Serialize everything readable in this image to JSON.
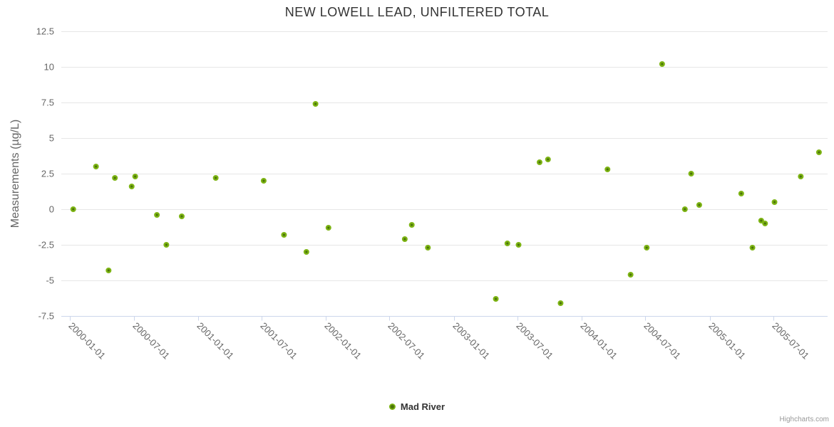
{
  "title": "NEW LOWELL LEAD, UNFILTERED TOTAL",
  "y_axis_title": "Measurements (µg/L)",
  "legend": {
    "label": "Mad River"
  },
  "credits": "Highcharts.com",
  "colors": {
    "title": "#333333",
    "labels": "#666666",
    "tick_labels": "#666666",
    "credits": "#999999",
    "grid": "#e6e6e6",
    "axis_line": "#ccd6eb",
    "marker_center": "#4a7309",
    "marker_rim": "#7db414"
  },
  "chart_data": {
    "type": "scatter",
    "title": "NEW LOWELL LEAD, UNFILTERED TOTAL",
    "xlabel": "",
    "ylabel": "Measurements (µg/L)",
    "ylim": [
      -7.5,
      12.5
    ],
    "y_tick_interval": 2.5,
    "grid": "horizontal-only",
    "legend_position": "bottom-center",
    "y_ticks": [
      {
        "v": 12.5,
        "label": "12.5"
      },
      {
        "v": 10,
        "label": "10"
      },
      {
        "v": 7.5,
        "label": "7.5"
      },
      {
        "v": 5,
        "label": "5"
      },
      {
        "v": 2.5,
        "label": "2.5"
      },
      {
        "v": 0,
        "label": "0"
      },
      {
        "v": -2.5,
        "label": "-2.5"
      },
      {
        "v": -5,
        "label": "-5"
      },
      {
        "v": -7.5,
        "label": "-7.5"
      }
    ],
    "x_ticks": [
      "2000-01-01",
      "2000-07-01",
      "2001-01-01",
      "2001-07-01",
      "2002-01-01",
      "2002-07-01",
      "2003-01-01",
      "2003-07-01",
      "2004-01-01",
      "2004-07-01",
      "2005-01-01",
      "2005-07-01"
    ],
    "series": [
      {
        "name": "Mad River",
        "points": [
          {
            "date": "2000-01-10",
            "value": 0.0
          },
          {
            "date": "2000-03-15",
            "value": 3.0
          },
          {
            "date": "2000-04-20",
            "value": -4.3
          },
          {
            "date": "2000-05-08",
            "value": 2.2
          },
          {
            "date": "2000-06-25",
            "value": 1.6
          },
          {
            "date": "2000-07-05",
            "value": 2.3
          },
          {
            "date": "2000-09-05",
            "value": -0.4
          },
          {
            "date": "2000-10-02",
            "value": -2.5
          },
          {
            "date": "2000-11-15",
            "value": -0.5
          },
          {
            "date": "2001-02-20",
            "value": 2.2
          },
          {
            "date": "2001-07-07",
            "value": 2.0
          },
          {
            "date": "2001-09-03",
            "value": -1.8
          },
          {
            "date": "2001-11-06",
            "value": -3.0
          },
          {
            "date": "2001-12-02",
            "value": 7.4
          },
          {
            "date": "2002-01-08",
            "value": -1.3
          },
          {
            "date": "2002-08-14",
            "value": -2.1
          },
          {
            "date": "2002-09-03",
            "value": -1.1
          },
          {
            "date": "2002-10-19",
            "value": -2.7
          },
          {
            "date": "2003-05-01",
            "value": -6.3
          },
          {
            "date": "2003-06-03",
            "value": -2.4
          },
          {
            "date": "2003-07-05",
            "value": -2.5
          },
          {
            "date": "2003-09-03",
            "value": 3.3
          },
          {
            "date": "2003-09-27",
            "value": 3.5
          },
          {
            "date": "2003-11-02",
            "value": -6.6
          },
          {
            "date": "2004-03-15",
            "value": 2.8
          },
          {
            "date": "2004-05-20",
            "value": -4.6
          },
          {
            "date": "2004-07-05",
            "value": -2.7
          },
          {
            "date": "2004-08-18",
            "value": 10.2
          },
          {
            "date": "2004-10-22",
            "value": 0.0
          },
          {
            "date": "2004-11-09",
            "value": 2.5
          },
          {
            "date": "2004-12-02",
            "value": 0.3
          },
          {
            "date": "2005-04-01",
            "value": 1.1
          },
          {
            "date": "2005-05-03",
            "value": -2.7
          },
          {
            "date": "2005-05-28",
            "value": -0.8
          },
          {
            "date": "2005-06-08",
            "value": -1.0
          },
          {
            "date": "2005-07-05",
            "value": 0.5
          },
          {
            "date": "2005-09-18",
            "value": 2.3
          },
          {
            "date": "2005-11-09",
            "value": 4.0
          }
        ]
      }
    ]
  }
}
